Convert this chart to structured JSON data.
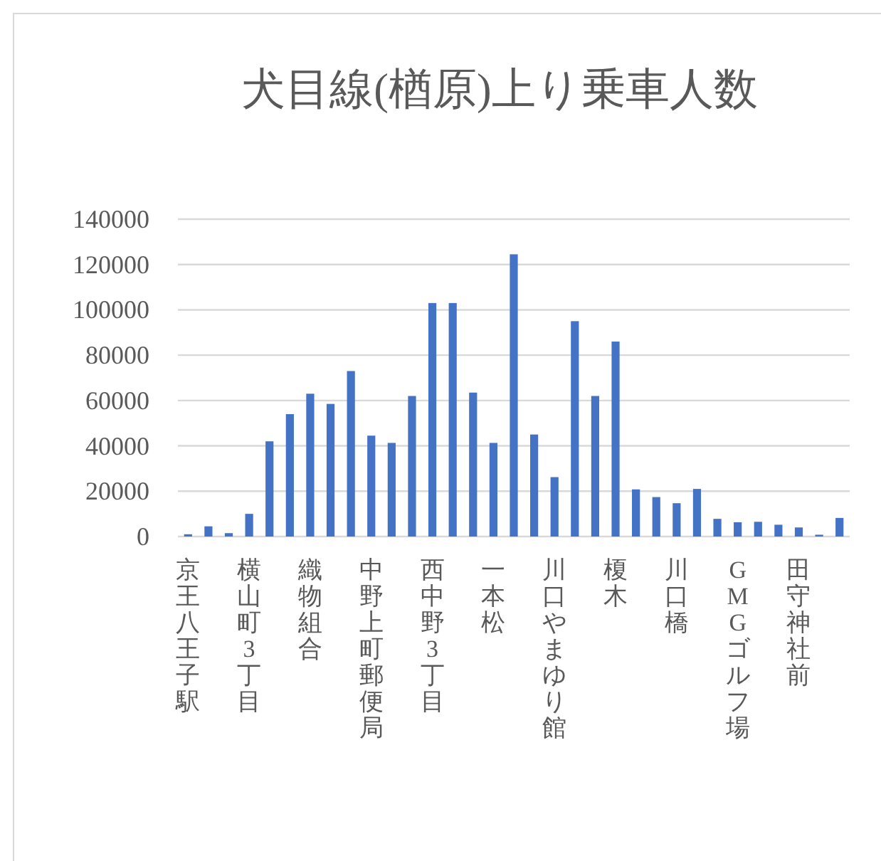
{
  "chart_data": {
    "type": "bar",
    "title": "犬目線(楢原)上り乗車人数",
    "categories": [
      "京王八王子駅",
      null,
      null,
      "横山町3丁目",
      null,
      null,
      "織物組合",
      null,
      null,
      "中野上町郵便局",
      null,
      null,
      "西中野3丁目",
      null,
      null,
      "一本松",
      null,
      null,
      "川口やまゆり館",
      null,
      null,
      "榎木",
      null,
      null,
      "川口橋",
      null,
      null,
      "GMGゴルフ場",
      null,
      null,
      "田守神社前",
      null,
      null
    ],
    "values": [
      1000,
      4500,
      1500,
      10000,
      42000,
      54000,
      63000,
      58500,
      73000,
      44500,
      41300,
      62000,
      103000,
      103000,
      63500,
      41300,
      124500,
      45000,
      26200,
      95000,
      62000,
      86000,
      20800,
      17400,
      14700,
      21000,
      7800,
      6300,
      6500,
      5200,
      4000,
      800,
      8200
    ],
    "color": "#4472c4",
    "ylim": [
      0,
      140000
    ],
    "yticks": [
      0,
      20000,
      40000,
      60000,
      80000,
      100000,
      120000,
      140000
    ],
    "grid": "y"
  }
}
